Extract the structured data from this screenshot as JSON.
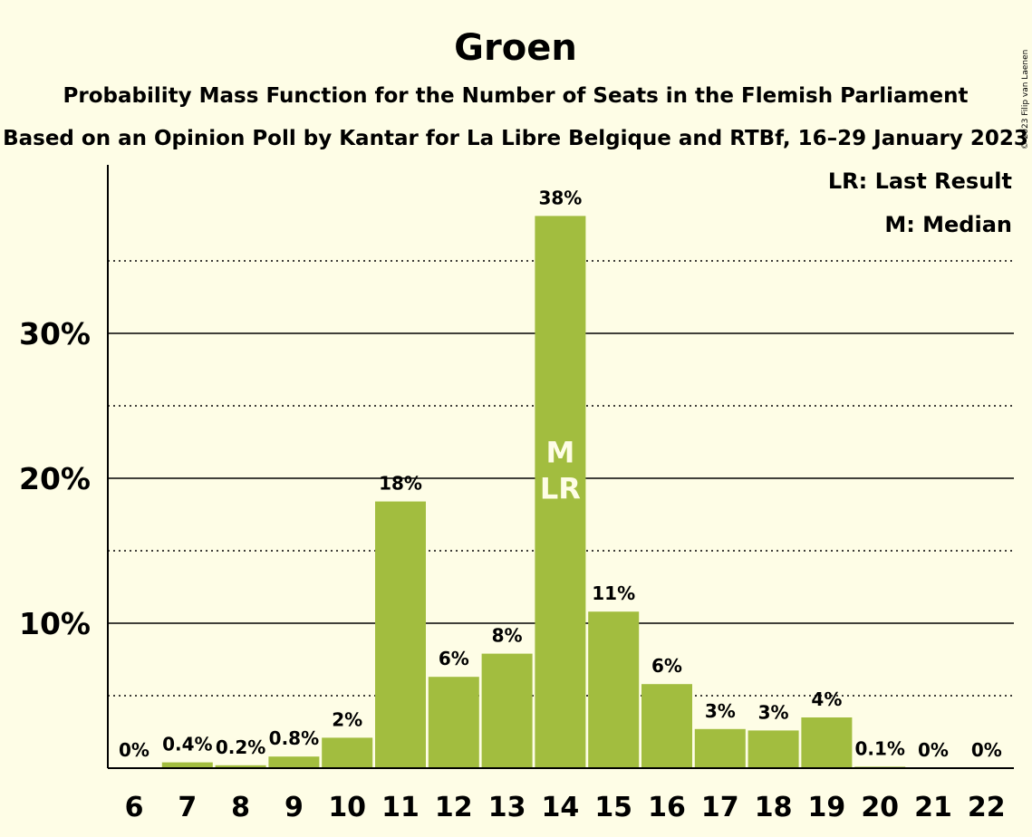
{
  "copyright": "© 2023 Filip van Laenen",
  "chart_data": {
    "type": "bar",
    "title": "Groen",
    "subtitles": [
      "Probability Mass Function for the Number of Seats in the Flemish Parliament",
      "Based on an Opinion Poll by Kantar for La Libre Belgique and RTBf, 16–29 January 2023"
    ],
    "categories": [
      "6",
      "7",
      "8",
      "9",
      "10",
      "11",
      "12",
      "13",
      "14",
      "15",
      "16",
      "17",
      "18",
      "19",
      "20",
      "21",
      "22"
    ],
    "values": [
      0,
      0.4,
      0.2,
      0.8,
      2.1,
      18.4,
      6.3,
      7.9,
      38.1,
      10.8,
      5.8,
      2.7,
      2.6,
      3.5,
      0.1,
      0,
      0
    ],
    "value_labels": [
      "0%",
      "0.4%",
      "0.2%",
      "0.8%",
      "2%",
      "18%",
      "6%",
      "8%",
      "38%",
      "11%",
      "6%",
      "3%",
      "3%",
      "4%",
      "0.1%",
      "0%",
      "0%"
    ],
    "ylim": [
      0,
      41
    ],
    "yticks": [
      {
        "value": 10,
        "label": "10%"
      },
      {
        "value": 20,
        "label": "20%"
      },
      {
        "value": 30,
        "label": "30%"
      }
    ],
    "minor_gridlines": [
      5,
      15,
      25,
      35
    ],
    "bar_color": "#a2bd3f",
    "median_category": "14",
    "last_result_category": "14",
    "in_bar_marks": [
      "M",
      "LR"
    ],
    "legend": [
      "LR: Last Result",
      "M: Median"
    ],
    "legend_position": "top-right",
    "xlabel": "",
    "ylabel": ""
  }
}
